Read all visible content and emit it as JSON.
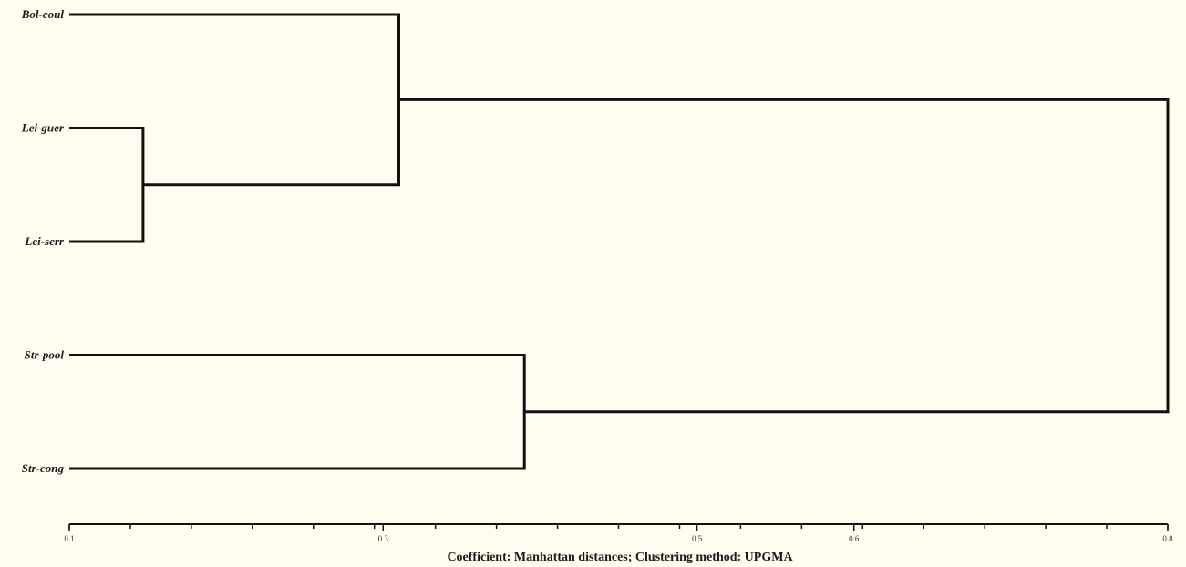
{
  "chart_data": {
    "type": "dendrogram",
    "leaves": [
      "Bol-coul",
      "Lei-guer",
      "Lei-serr",
      "Str-pool",
      "Str-cong"
    ],
    "merges": [
      {
        "id": "A",
        "children": [
          "Lei-guer",
          "Lei-serr"
        ],
        "height": 0.147
      },
      {
        "id": "B",
        "children": [
          "Bol-coul",
          "A"
        ],
        "height": 0.31
      },
      {
        "id": "C",
        "children": [
          "Str-pool",
          "Str-cong"
        ],
        "height": 0.39
      },
      {
        "id": "D",
        "children": [
          "B",
          "C"
        ],
        "height": 0.8
      }
    ],
    "xlim": [
      0.1,
      0.8
    ],
    "major_ticks": [
      0.1,
      0.3,
      0.5,
      0.6,
      0.8
    ],
    "tick_labels": [
      "0.1",
      "0.3",
      "0.5",
      "0.6",
      "0.8"
    ],
    "minor_tick_step": 0.04,
    "caption": "Coefficient: Manhattan  distances; Clustering method: UPGMA"
  },
  "colors": {
    "background": "#fefdf0",
    "lines": "#111111"
  }
}
